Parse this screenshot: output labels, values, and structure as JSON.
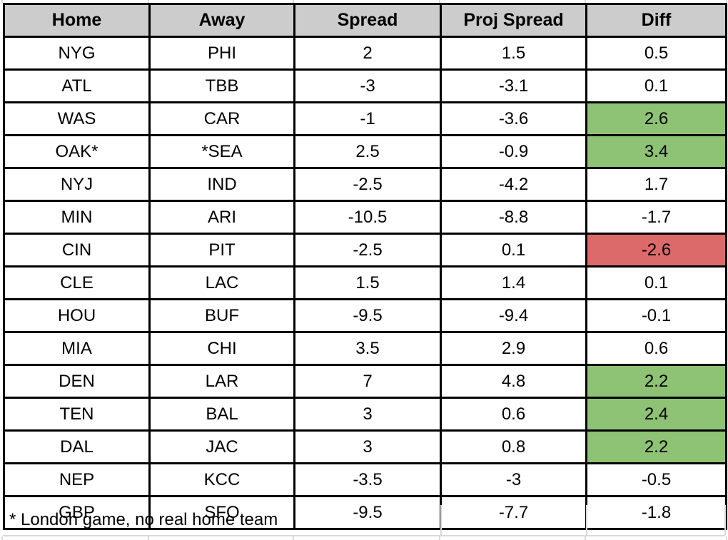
{
  "colors": {
    "header_bg": "#CCCCCC",
    "table_border": "#000000",
    "gridline": "#D9D9D9",
    "positive_highlight": "#8EC375",
    "negative_highlight": "#DD6A6B"
  },
  "table": {
    "columns": [
      "Home",
      "Away",
      "Spread",
      "Proj Spread",
      "Diff"
    ],
    "rows": [
      {
        "home": "NYG",
        "away": "PHI",
        "spread": "2",
        "proj_spread": "1.5",
        "diff": "0.5",
        "diff_highlight": "none"
      },
      {
        "home": "ATL",
        "away": "TBB",
        "spread": "-3",
        "proj_spread": "-3.1",
        "diff": "0.1",
        "diff_highlight": "none"
      },
      {
        "home": "WAS",
        "away": "CAR",
        "spread": "-1",
        "proj_spread": "-3.6",
        "diff": "2.6",
        "diff_highlight": "green"
      },
      {
        "home": "OAK*",
        "away": "*SEA",
        "spread": "2.5",
        "proj_spread": "-0.9",
        "diff": "3.4",
        "diff_highlight": "green"
      },
      {
        "home": "NYJ",
        "away": "IND",
        "spread": "-2.5",
        "proj_spread": "-4.2",
        "diff": "1.7",
        "diff_highlight": "none"
      },
      {
        "home": "MIN",
        "away": "ARI",
        "spread": "-10.5",
        "proj_spread": "-8.8",
        "diff": "-1.7",
        "diff_highlight": "none"
      },
      {
        "home": "CIN",
        "away": "PIT",
        "spread": "-2.5",
        "proj_spread": "0.1",
        "diff": "-2.6",
        "diff_highlight": "red"
      },
      {
        "home": "CLE",
        "away": "LAC",
        "spread": "1.5",
        "proj_spread": "1.4",
        "diff": "0.1",
        "diff_highlight": "none"
      },
      {
        "home": "HOU",
        "away": "BUF",
        "spread": "-9.5",
        "proj_spread": "-9.4",
        "diff": "-0.1",
        "diff_highlight": "none"
      },
      {
        "home": "MIA",
        "away": "CHI",
        "spread": "3.5",
        "proj_spread": "2.9",
        "diff": "0.6",
        "diff_highlight": "none"
      },
      {
        "home": "DEN",
        "away": "LAR",
        "spread": "7",
        "proj_spread": "4.8",
        "diff": "2.2",
        "diff_highlight": "green"
      },
      {
        "home": "TEN",
        "away": "BAL",
        "spread": "3",
        "proj_spread": "0.6",
        "diff": "2.4",
        "diff_highlight": "green"
      },
      {
        "home": "DAL",
        "away": "JAC",
        "spread": "3",
        "proj_spread": "0.8",
        "diff": "2.2",
        "diff_highlight": "green"
      },
      {
        "home": "NEP",
        "away": "KCC",
        "spread": "-3.5",
        "proj_spread": "-3",
        "diff": "-0.5",
        "diff_highlight": "none"
      },
      {
        "home": "GBP",
        "away": "SFO",
        "spread": "-9.5",
        "proj_spread": "-7.7",
        "diff": "-1.8",
        "diff_highlight": "none"
      }
    ]
  },
  "footnote": "* London game, no real home team"
}
